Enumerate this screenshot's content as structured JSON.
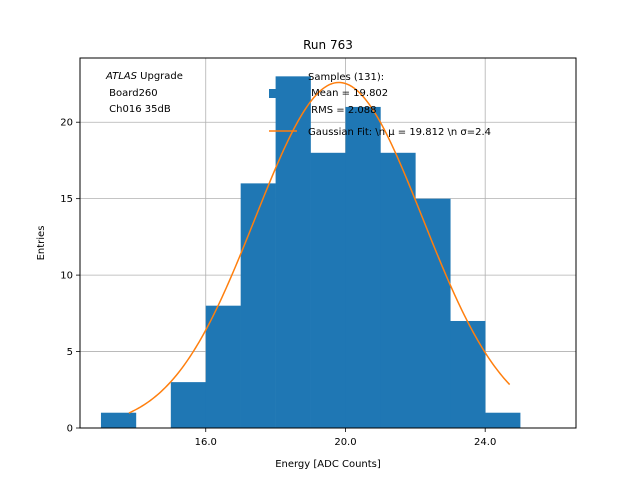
{
  "chart_data": {
    "type": "bar",
    "title": "Run 763",
    "xlabel": "Energy [ADC Counts]",
    "ylabel": "Entries",
    "xlim": [
      12.4,
      26.6
    ],
    "ylim": [
      0,
      24.2
    ],
    "xticks": [
      16.0,
      20.0,
      24.0
    ],
    "xtick_labels": [
      "16.0",
      "20.0",
      "24.0"
    ],
    "yticks": [
      0,
      5,
      10,
      15,
      20
    ],
    "ytick_labels": [
      "0",
      "5",
      "10",
      "15",
      "20"
    ],
    "grid": true,
    "bin_edges": [
      13,
      14,
      15,
      16,
      17,
      18,
      19,
      20,
      21,
      22,
      23,
      24,
      25
    ],
    "counts": [
      1,
      0,
      3,
      8,
      16,
      23,
      18,
      21,
      18,
      15,
      7,
      1
    ],
    "bar_color": "#1f77b4",
    "fit": {
      "mu": 19.812,
      "sigma": 2.4,
      "amplitude": 22.6,
      "x_range": [
        13.8,
        24.7
      ],
      "color": "#ff7f0e"
    },
    "legend": {
      "placement": "top-center",
      "hist_label_lines": [
        "Samples (131):",
        " Mean = 19.802",
        " RMS = 2.088"
      ],
      "fit_label": "Gaussian Fit: \\n μ = 19.812 \\n σ=2.4"
    },
    "annotation": {
      "italic": "ATLAS",
      "rest": " Upgrade",
      "line2": " Board260",
      "line3": " Ch016 35dB"
    }
  }
}
